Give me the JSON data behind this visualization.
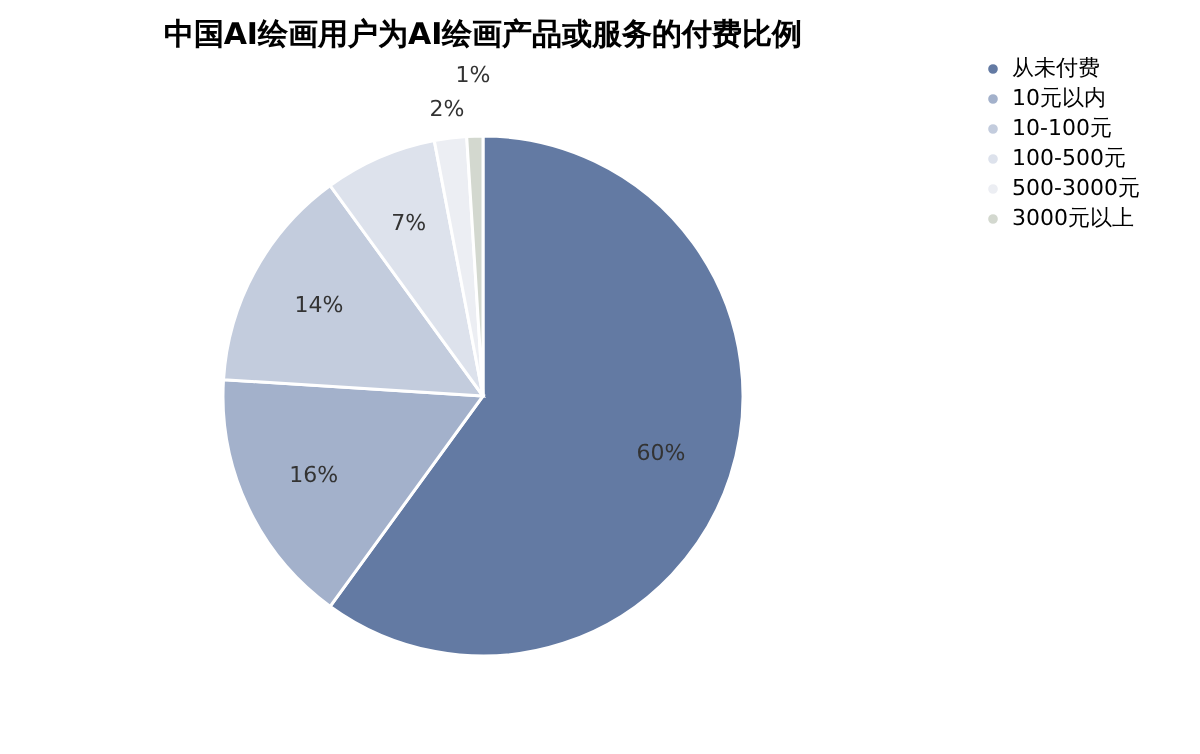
{
  "chart_data": {
    "type": "pie",
    "title": "中国AI绘画用户为AI绘画产品或服务的付费比例",
    "categories": [
      "从未付费",
      "10元以内",
      "10-100元",
      "100-500元",
      "500-3000元",
      "3000元以上"
    ],
    "values": [
      60,
      16,
      14,
      7,
      2,
      1
    ],
    "value_labels": [
      "60%",
      "16%",
      "14%",
      "7%",
      "2%",
      "1%"
    ],
    "colors": [
      "#637aa3",
      "#a3b1cb",
      "#c3ccdd",
      "#dde2ec",
      "#eceef3",
      "#d3d8cf"
    ],
    "legend": "right"
  }
}
